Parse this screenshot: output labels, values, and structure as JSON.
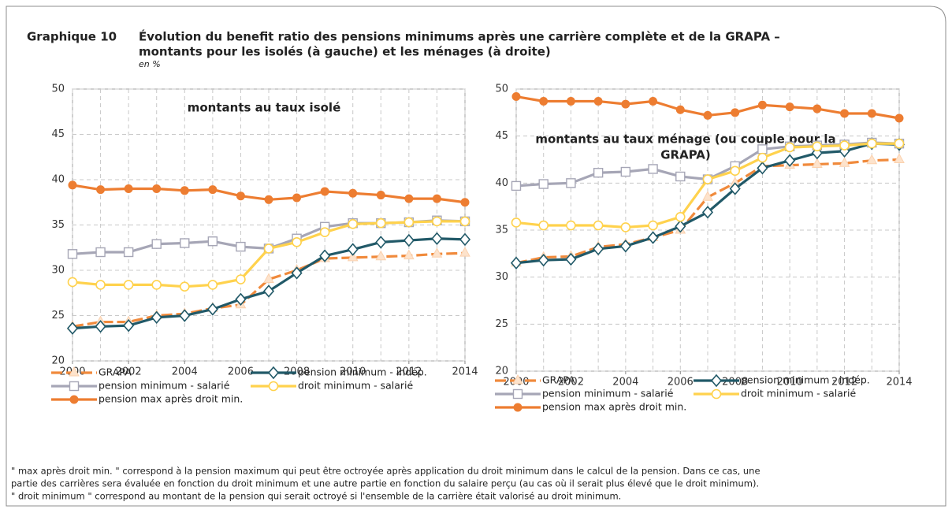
{
  "label": "Graphique 10",
  "title": [
    "Évolution du benefit ratio des pensions minimums après une carrière complète et de la GRAPA –",
    "montants pour les isolés  (à gauche) et les ménages (à droite)"
  ],
  "subtitle": "en %",
  "chart_data": [
    {
      "type": "line",
      "annotation": [
        "montants au taux isolé"
      ],
      "x": [
        2000,
        2001,
        2002,
        2003,
        2004,
        2005,
        2006,
        2007,
        2008,
        2009,
        2010,
        2011,
        2012,
        2013,
        2014
      ],
      "xlim": [
        2000,
        2014
      ],
      "xticks": [
        2000,
        2002,
        2004,
        2006,
        2008,
        2010,
        2012,
        2014
      ],
      "ylim": [
        20,
        50
      ],
      "yticks": [
        20,
        25,
        30,
        35,
        40,
        45,
        50
      ],
      "grid": true,
      "series": [
        {
          "name": "GRAPA",
          "color": "#f08a3c",
          "marker": "triangle",
          "dash": true,
          "values": [
            23.8,
            24.3,
            24.3,
            25.0,
            25.2,
            25.8,
            26.2,
            29.0,
            30.0,
            31.3,
            31.4,
            31.5,
            31.6,
            31.8,
            31.9
          ]
        },
        {
          "name": "pension minimum - indép.",
          "color": "#215968",
          "marker": "diamond",
          "values": [
            23.6,
            23.8,
            23.9,
            24.8,
            25.0,
            25.7,
            26.8,
            27.7,
            29.7,
            31.6,
            32.3,
            33.1,
            33.3,
            33.5,
            33.4
          ]
        },
        {
          "name": "pension minimum - salarié",
          "color": "#a6a6b6",
          "marker": "square",
          "values": [
            31.8,
            32.0,
            32.0,
            32.9,
            33.0,
            33.2,
            32.6,
            32.4,
            33.5,
            34.8,
            35.2,
            35.2,
            35.3,
            35.5,
            35.4
          ]
        },
        {
          "name": "droit minimum - salarié",
          "color": "#ffd24d",
          "marker": "circle",
          "values": [
            28.7,
            28.4,
            28.4,
            28.4,
            28.2,
            28.4,
            29.0,
            32.4,
            33.1,
            34.2,
            35.1,
            35.2,
            35.3,
            35.4,
            35.4
          ]
        },
        {
          "name": "pension max après droit min.",
          "color": "#ed7d31",
          "marker": "dot",
          "values": [
            39.4,
            38.9,
            39.0,
            39.0,
            38.8,
            38.9,
            38.2,
            37.8,
            38.0,
            38.7,
            38.5,
            38.3,
            37.9,
            37.9,
            37.5
          ]
        }
      ]
    },
    {
      "type": "line",
      "annotation": [
        "montants au taux ménage (ou couple pour la",
        "GRAPA)"
      ],
      "x": [
        2000,
        2001,
        2002,
        2003,
        2004,
        2005,
        2006,
        2007,
        2008,
        2009,
        2010,
        2011,
        2012,
        2013,
        2014
      ],
      "xlim": [
        2000,
        2014
      ],
      "xticks": [
        2000,
        2002,
        2004,
        2006,
        2008,
        2010,
        2012,
        2014
      ],
      "ylim": [
        20,
        50
      ],
      "yticks": [
        20,
        25,
        30,
        35,
        40,
        45,
        50
      ],
      "grid": true,
      "series": [
        {
          "name": "GRAPA",
          "color": "#f08a3c",
          "marker": "triangle",
          "dash": true,
          "values": [
            31.5,
            32.1,
            32.2,
            33.2,
            33.5,
            34.2,
            35.0,
            38.5,
            40.0,
            41.8,
            41.9,
            42.0,
            42.1,
            42.4,
            42.5
          ]
        },
        {
          "name": "pension minimum - indép.",
          "color": "#215968",
          "marker": "diamond",
          "values": [
            31.5,
            31.8,
            31.9,
            33.0,
            33.3,
            34.2,
            35.4,
            36.9,
            39.4,
            41.6,
            42.4,
            43.2,
            43.4,
            44.2,
            44.1
          ]
        },
        {
          "name": "pension minimum - salarié",
          "color": "#a6a6b6",
          "marker": "square",
          "values": [
            39.7,
            39.9,
            40.0,
            41.1,
            41.2,
            41.5,
            40.7,
            40.4,
            41.8,
            43.6,
            43.9,
            44.0,
            44.1,
            44.3,
            44.2
          ]
        },
        {
          "name": "droit minimum - salarié",
          "color": "#ffd24d",
          "marker": "circle",
          "values": [
            35.8,
            35.5,
            35.5,
            35.5,
            35.3,
            35.5,
            36.4,
            40.4,
            41.3,
            42.7,
            43.8,
            43.9,
            44.0,
            44.2,
            44.2
          ]
        },
        {
          "name": "pension max après droit min.",
          "color": "#ed7d31",
          "marker": "dot",
          "values": [
            49.2,
            48.7,
            48.7,
            48.7,
            48.4,
            48.7,
            47.8,
            47.2,
            47.5,
            48.3,
            48.1,
            47.9,
            47.4,
            47.4,
            46.9
          ]
        }
      ]
    }
  ],
  "notes": [
    "\" max après droit min. \" correspond à la pension maximum qui peut être octroyée après application du droit minimum dans le calcul de la pension. Dans ce cas, une",
    "partie des carrières sera évaluée en fonction du droit minimum et une autre partie en fonction du salaire perçu (au cas où il serait plus élevé que le droit minimum).",
    "\" droit minimum \" correspond au montant de la pension qui serait octroyé si l'ensemble de la carrière était valorisé au droit minimum."
  ]
}
